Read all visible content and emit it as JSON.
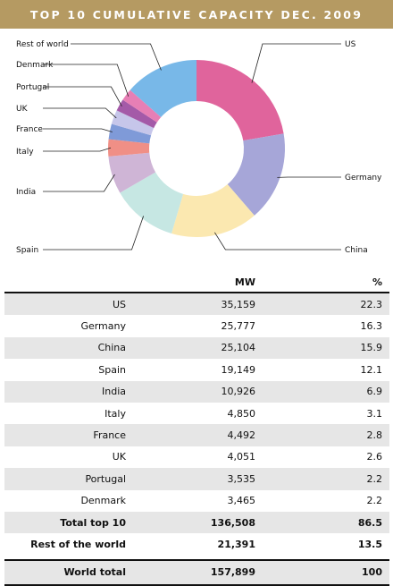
{
  "title": "TOP 10 CUMULATIVE CAPACITY DEC. 2009",
  "chart_data": {
    "type": "pie",
    "categories": [
      "US",
      "Germany",
      "China",
      "Spain",
      "India",
      "Italy",
      "France",
      "UK",
      "Portugal",
      "Denmark",
      "Rest of world"
    ],
    "values": [
      22.3,
      16.3,
      15.9,
      12.1,
      6.9,
      3.1,
      2.8,
      2.6,
      2.2,
      2.2,
      13.5
    ],
    "colors": [
      "#e0649c",
      "#a6a6d8",
      "#fbe8b0",
      "#c6e7e3",
      "#cfb5d6",
      "#f08f86",
      "#7f9ad8",
      "#c6c6ea",
      "#a45aa8",
      "#e77fb5",
      "#78b8e8"
    ],
    "donut": true
  },
  "table": {
    "col_mw": "MW",
    "col_pct": "%",
    "rows": [
      {
        "name": "US",
        "mw": "35,159",
        "pct": "22.3"
      },
      {
        "name": "Germany",
        "mw": "25,777",
        "pct": "16.3"
      },
      {
        "name": "China",
        "mw": "25,104",
        "pct": "15.9"
      },
      {
        "name": "Spain",
        "mw": "19,149",
        "pct": "12.1"
      },
      {
        "name": "India",
        "mw": "10,926",
        "pct": "6.9"
      },
      {
        "name": "Italy",
        "mw": "4,850",
        "pct": "3.1"
      },
      {
        "name": "France",
        "mw": "4,492",
        "pct": "2.8"
      },
      {
        "name": "UK",
        "mw": "4,051",
        "pct": "2.6"
      },
      {
        "name": "Portugal",
        "mw": "3,535",
        "pct": "2.2"
      },
      {
        "name": "Denmark",
        "mw": "3,465",
        "pct": "2.2"
      }
    ],
    "total_top10": {
      "name": "Total top 10",
      "mw": "136,508",
      "pct": "86.5"
    },
    "rest": {
      "name": "Rest of the world",
      "mw": "21,391",
      "pct": "13.5"
    },
    "world_total": {
      "name": "World total",
      "mw": "157,899",
      "pct": "100"
    }
  }
}
